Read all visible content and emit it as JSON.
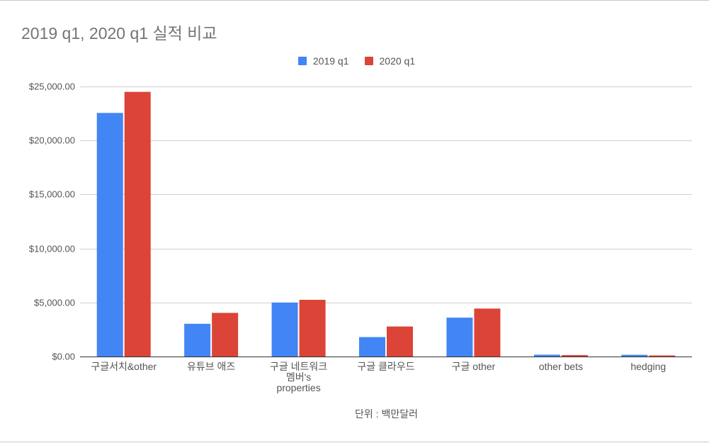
{
  "chart_data": {
    "type": "bar",
    "title": "2019 q1, 2020 q1 실적 비교",
    "xlabel": "단위 : 백만달러",
    "ylabel": "",
    "ylim": [
      0,
      25000
    ],
    "yticks": [
      "$0.00",
      "$5,000.00",
      "$10,000.00",
      "$15,000.00",
      "$20,000.00",
      "$25,000.00"
    ],
    "grid": true,
    "legend_position": "top",
    "categories": [
      "구글서치&other",
      "유튜브 애즈",
      "구글 네트워크 멤버's properties",
      "구글 클라우드",
      "구글 other",
      "other bets",
      "hedging"
    ],
    "category_label_lines": [
      [
        "구글서치&other"
      ],
      [
        "유튜브 애즈"
      ],
      [
        "구글 네트워크",
        "멤버's",
        "properties"
      ],
      [
        "구글 클라우드"
      ],
      [
        "구글 other"
      ],
      [
        "other bets"
      ],
      [
        "hedging"
      ]
    ],
    "series": [
      {
        "name": "2019 q1",
        "color": "#4285f4",
        "values": [
          22550,
          3030,
          5000,
          1800,
          3600,
          170,
          160
        ]
      },
      {
        "name": "2020 q1",
        "color": "#db4437",
        "values": [
          24500,
          4040,
          5250,
          2780,
          4440,
          135,
          100
        ]
      }
    ]
  }
}
